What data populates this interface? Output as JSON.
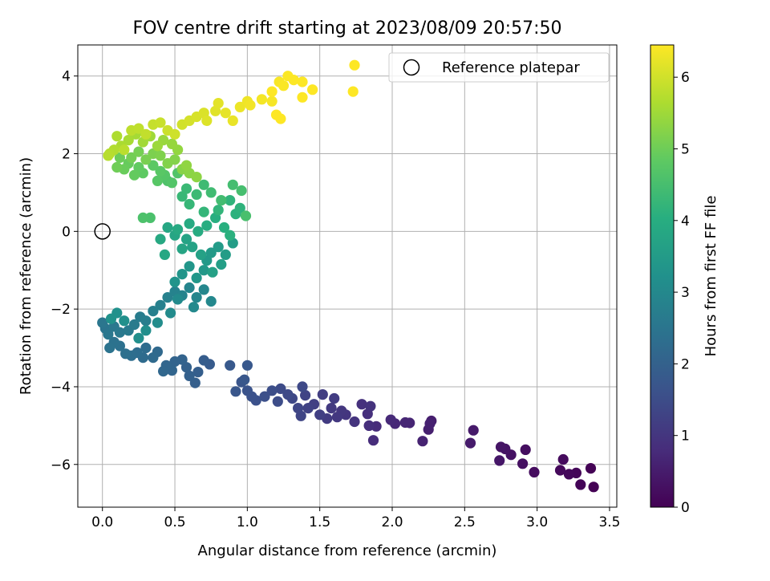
{
  "chart_data": {
    "type": "scatter",
    "title": "FOV centre drift starting at 2023/08/09 20:57:50",
    "xlabel": "Angular distance from reference (arcmin)",
    "ylabel": "Rotation from reference (arcmin)",
    "xlim": [
      -0.17,
      3.55
    ],
    "ylim": [
      -7.1,
      4.8
    ],
    "xticks": [
      0.0,
      0.5,
      1.0,
      1.5,
      2.0,
      2.5,
      3.0,
      3.5
    ],
    "xtick_labels": [
      "0.0",
      "0.5",
      "1.0",
      "1.5",
      "2.0",
      "2.5",
      "3.0",
      "3.5"
    ],
    "yticks": [
      -6,
      -4,
      -2,
      0,
      2,
      4
    ],
    "ytick_labels": [
      "−6",
      "−4",
      "−2",
      "0",
      "2",
      "4"
    ],
    "grid": true,
    "legend": {
      "placement": "top-right",
      "entries": [
        "Reference platepar"
      ]
    },
    "reference_point": {
      "x": 0.0,
      "y": 0.0
    },
    "colorbar": {
      "label": "Hours from first FF file",
      "range": [
        0,
        6.45
      ],
      "ticks": [
        0,
        1,
        2,
        3,
        4,
        5,
        6
      ],
      "tick_labels": [
        "0",
        "1",
        "2",
        "3",
        "4",
        "5",
        "6"
      ],
      "colormap": "viridis"
    },
    "series": [
      {
        "points": [
          [
            3.39,
            -6.58,
            0.0
          ],
          [
            3.37,
            -6.1,
            0.03
          ],
          [
            3.3,
            -6.52,
            0.06
          ],
          [
            3.27,
            -6.22,
            0.09
          ],
          [
            3.22,
            -6.25,
            0.12
          ],
          [
            3.16,
            -6.15,
            0.15
          ],
          [
            3.18,
            -5.87,
            0.18
          ],
          [
            2.98,
            -6.2,
            0.21
          ],
          [
            2.92,
            -5.62,
            0.24
          ],
          [
            2.9,
            -5.98,
            0.27
          ],
          [
            2.82,
            -5.75,
            0.3
          ],
          [
            2.78,
            -5.6,
            0.33
          ],
          [
            2.75,
            -5.55,
            0.36
          ],
          [
            2.74,
            -5.9,
            0.39
          ],
          [
            2.56,
            -5.12,
            0.45
          ],
          [
            2.54,
            -5.45,
            0.48
          ],
          [
            2.27,
            -4.88,
            0.53
          ],
          [
            2.25,
            -5.1,
            0.56
          ],
          [
            2.26,
            -4.95,
            0.59
          ],
          [
            2.21,
            -5.4,
            0.62
          ],
          [
            2.12,
            -4.93,
            0.66
          ],
          [
            2.09,
            -4.92,
            0.69
          ],
          [
            2.02,
            -4.95,
            0.72
          ],
          [
            1.99,
            -4.85,
            0.75
          ],
          [
            1.89,
            -5.02,
            0.78
          ],
          [
            1.87,
            -5.38,
            0.81
          ],
          [
            1.84,
            -5.0,
            0.84
          ],
          [
            1.83,
            -4.7,
            0.87
          ],
          [
            1.79,
            -4.45,
            0.9
          ],
          [
            1.85,
            -4.5,
            0.93
          ],
          [
            1.74,
            -4.9,
            0.96
          ],
          [
            1.68,
            -4.72,
            0.99
          ],
          [
            1.65,
            -4.62,
            1.02
          ],
          [
            1.62,
            -4.78,
            1.05
          ],
          [
            1.58,
            -4.55,
            1.08
          ],
          [
            1.55,
            -4.82,
            1.11
          ],
          [
            1.6,
            -4.3,
            1.14
          ],
          [
            1.52,
            -4.2,
            1.17
          ],
          [
            1.5,
            -4.72,
            1.2
          ],
          [
            1.46,
            -4.45,
            1.23
          ],
          [
            1.42,
            -4.55,
            1.26
          ],
          [
            1.4,
            -4.22,
            1.29
          ],
          [
            1.37,
            -4.75,
            1.32
          ],
          [
            1.35,
            -4.55,
            1.35
          ],
          [
            1.31,
            -4.3,
            1.38
          ],
          [
            1.38,
            -4.0,
            1.41
          ],
          [
            1.28,
            -4.2,
            1.44
          ],
          [
            1.23,
            -4.05,
            1.47
          ],
          [
            1.21,
            -4.38,
            1.5
          ],
          [
            1.17,
            -4.1,
            1.53
          ],
          [
            1.12,
            -4.25,
            1.56
          ],
          [
            1.06,
            -4.35,
            1.59
          ],
          [
            1.03,
            -4.25,
            1.62
          ],
          [
            1.0,
            -4.1,
            1.65
          ],
          [
            0.96,
            -3.88,
            1.68
          ],
          [
            0.92,
            -4.12,
            1.71
          ],
          [
            0.98,
            -3.82,
            1.74
          ],
          [
            1.0,
            -3.45,
            1.77
          ],
          [
            0.88,
            -3.45,
            1.8
          ],
          [
            0.74,
            -3.42,
            1.85
          ],
          [
            0.7,
            -3.32,
            1.88
          ],
          [
            0.66,
            -3.62,
            1.91
          ],
          [
            0.64,
            -3.9,
            1.94
          ],
          [
            0.6,
            -3.72,
            1.97
          ],
          [
            0.58,
            -3.5,
            2.0
          ],
          [
            0.55,
            -3.3,
            2.03
          ],
          [
            0.5,
            -3.35,
            2.06
          ],
          [
            0.48,
            -3.58,
            2.09
          ],
          [
            0.44,
            -3.45,
            2.12
          ],
          [
            0.42,
            -3.6,
            2.15
          ],
          [
            0.38,
            -3.1,
            2.18
          ],
          [
            0.35,
            -3.25,
            2.21
          ],
          [
            0.28,
            -3.25,
            2.24
          ],
          [
            0.3,
            -3.0,
            2.27
          ],
          [
            0.24,
            -3.12,
            2.3
          ],
          [
            0.2,
            -3.2,
            2.33
          ],
          [
            0.16,
            -3.15,
            2.36
          ],
          [
            0.12,
            -2.95,
            2.39
          ],
          [
            0.08,
            -2.85,
            2.42
          ],
          [
            0.05,
            -3.0,
            2.45
          ],
          [
            0.02,
            -2.5,
            2.48
          ],
          [
            0.0,
            -2.35,
            2.51
          ],
          [
            0.04,
            -2.65,
            2.54
          ],
          [
            0.08,
            -2.45,
            2.57
          ],
          [
            0.12,
            -2.6,
            2.6
          ],
          [
            0.18,
            -2.55,
            2.63
          ],
          [
            0.22,
            -2.4,
            2.66
          ],
          [
            0.26,
            -2.2,
            2.69
          ],
          [
            0.3,
            -2.3,
            2.72
          ],
          [
            0.35,
            -2.05,
            2.75
          ],
          [
            0.4,
            -1.9,
            2.78
          ],
          [
            0.45,
            -1.7,
            2.81
          ],
          [
            0.5,
            -1.55,
            2.84
          ],
          [
            0.55,
            -1.65,
            2.87
          ],
          [
            0.6,
            -1.45,
            2.9
          ],
          [
            0.65,
            -1.7,
            2.93
          ],
          [
            0.7,
            -1.5,
            2.96
          ],
          [
            0.75,
            -1.8,
            2.99
          ],
          [
            0.63,
            -1.95,
            3.02
          ],
          [
            0.52,
            -1.75,
            3.05
          ],
          [
            0.47,
            -2.1,
            3.08
          ],
          [
            0.38,
            -2.35,
            3.11
          ],
          [
            0.3,
            -2.55,
            3.14
          ],
          [
            0.25,
            -2.75,
            3.17
          ],
          [
            0.15,
            -2.3,
            3.2
          ],
          [
            0.1,
            -2.1,
            3.23
          ],
          [
            0.06,
            -2.25,
            3.26
          ],
          [
            0.5,
            -1.3,
            3.3
          ],
          [
            0.55,
            -1.1,
            3.33
          ],
          [
            0.6,
            -0.9,
            3.36
          ],
          [
            0.65,
            -1.2,
            3.39
          ],
          [
            0.7,
            -1.0,
            3.42
          ],
          [
            0.72,
            -0.75,
            3.45
          ],
          [
            0.75,
            -0.55,
            3.48
          ],
          [
            0.8,
            -0.4,
            3.51
          ],
          [
            0.85,
            -0.6,
            3.54
          ],
          [
            0.9,
            -0.3,
            3.57
          ],
          [
            0.82,
            -0.85,
            3.6
          ],
          [
            0.76,
            -1.05,
            3.63
          ],
          [
            0.68,
            -0.6,
            3.66
          ],
          [
            0.62,
            -0.4,
            3.69
          ],
          [
            0.58,
            -0.2,
            3.72
          ],
          [
            0.55,
            -0.45,
            3.75
          ],
          [
            0.5,
            -0.1,
            3.78
          ],
          [
            0.45,
            0.1,
            3.81
          ],
          [
            0.43,
            -0.6,
            3.84
          ],
          [
            0.4,
            -0.2,
            3.87
          ],
          [
            0.52,
            0.05,
            3.9
          ],
          [
            0.6,
            0.2,
            3.93
          ],
          [
            0.66,
            0.0,
            3.96
          ],
          [
            0.72,
            0.15,
            3.99
          ],
          [
            0.78,
            0.35,
            4.02
          ],
          [
            0.84,
            0.1,
            4.05
          ],
          [
            0.88,
            -0.1,
            4.08
          ],
          [
            0.92,
            0.45,
            4.11
          ],
          [
            0.95,
            0.6,
            4.14
          ],
          [
            0.88,
            0.8,
            4.17
          ],
          [
            0.8,
            0.55,
            4.2
          ],
          [
            0.7,
            0.5,
            4.23
          ],
          [
            0.6,
            0.7,
            4.26
          ],
          [
            0.55,
            0.9,
            4.29
          ],
          [
            0.58,
            1.1,
            4.32
          ],
          [
            0.65,
            0.95,
            4.35
          ],
          [
            0.7,
            1.2,
            4.38
          ],
          [
            0.75,
            1.0,
            4.41
          ],
          [
            0.82,
            0.8,
            4.44
          ],
          [
            0.9,
            1.2,
            4.47
          ],
          [
            0.96,
            1.05,
            4.5
          ],
          [
            0.99,
            0.4,
            4.53
          ],
          [
            0.33,
            0.35,
            4.56
          ],
          [
            0.28,
            0.35,
            4.59
          ],
          [
            0.45,
            1.3,
            4.62
          ],
          [
            0.52,
            1.5,
            4.65
          ],
          [
            0.48,
            1.25,
            4.68
          ],
          [
            0.43,
            1.45,
            4.71
          ],
          [
            0.38,
            1.3,
            4.74
          ],
          [
            0.4,
            1.55,
            4.77
          ],
          [
            0.35,
            1.7,
            4.8
          ],
          [
            0.28,
            1.5,
            4.83
          ],
          [
            0.25,
            1.65,
            4.86
          ],
          [
            0.22,
            1.45,
            4.89
          ],
          [
            0.18,
            1.75,
            4.92
          ],
          [
            0.15,
            1.6,
            4.95
          ],
          [
            0.12,
            1.9,
            4.98
          ],
          [
            0.1,
            1.65,
            5.01
          ],
          [
            0.2,
            1.9,
            5.05
          ],
          [
            0.25,
            2.05,
            5.08
          ],
          [
            0.3,
            1.85,
            5.11
          ],
          [
            0.35,
            2.0,
            5.14
          ],
          [
            0.4,
            1.95,
            5.17
          ],
          [
            0.45,
            1.75,
            5.2
          ],
          [
            0.5,
            1.85,
            5.23
          ],
          [
            0.55,
            1.6,
            5.26
          ],
          [
            0.6,
            1.5,
            5.29
          ],
          [
            0.65,
            1.4,
            5.32
          ],
          [
            0.58,
            1.7,
            5.35
          ],
          [
            0.52,
            2.1,
            5.38
          ],
          [
            0.48,
            2.25,
            5.41
          ],
          [
            0.42,
            2.35,
            5.44
          ],
          [
            0.38,
            2.2,
            5.47
          ],
          [
            0.33,
            2.45,
            5.5
          ],
          [
            0.28,
            2.3,
            5.53
          ],
          [
            0.23,
            2.5,
            5.56
          ],
          [
            0.18,
            2.35,
            5.59
          ],
          [
            0.13,
            2.2,
            5.62
          ],
          [
            0.1,
            2.45,
            5.65
          ],
          [
            0.08,
            2.1,
            5.68
          ],
          [
            0.05,
            2.0,
            5.71
          ],
          [
            0.04,
            1.95,
            5.74
          ],
          [
            0.15,
            2.1,
            5.77
          ],
          [
            0.2,
            2.6,
            5.8
          ],
          [
            0.25,
            2.65,
            5.83
          ],
          [
            0.3,
            2.5,
            5.86
          ],
          [
            0.35,
            2.75,
            5.89
          ],
          [
            0.4,
            2.8,
            5.92
          ],
          [
            0.45,
            2.6,
            5.95
          ],
          [
            0.5,
            2.5,
            5.98
          ],
          [
            0.55,
            2.75,
            6.01
          ],
          [
            0.6,
            2.85,
            6.04
          ],
          [
            0.65,
            2.95,
            6.07
          ],
          [
            0.7,
            3.05,
            6.1
          ],
          [
            0.72,
            2.85,
            6.13
          ],
          [
            0.78,
            3.1,
            6.16
          ],
          [
            0.8,
            3.3,
            6.19
          ],
          [
            0.85,
            3.05,
            6.22
          ],
          [
            0.9,
            2.85,
            6.25
          ],
          [
            0.95,
            3.2,
            6.28
          ],
          [
            1.0,
            3.35,
            6.31
          ],
          [
            1.02,
            3.25,
            6.34
          ],
          [
            1.1,
            3.4,
            6.36
          ],
          [
            1.17,
            3.35,
            6.38
          ],
          [
            1.22,
            3.85,
            6.4
          ],
          [
            1.25,
            3.75,
            6.42
          ],
          [
            1.28,
            4.0,
            6.43
          ],
          [
            1.32,
            3.9,
            6.44
          ],
          [
            1.38,
            3.85,
            6.44
          ],
          [
            1.45,
            3.65,
            6.45
          ],
          [
            1.38,
            3.45,
            6.45
          ],
          [
            1.2,
            3.0,
            6.45
          ],
          [
            1.23,
            2.9,
            6.45
          ],
          [
            1.17,
            3.6,
            6.45
          ],
          [
            1.74,
            4.28,
            6.45
          ],
          [
            1.73,
            3.6,
            6.45
          ]
        ]
      }
    ]
  }
}
